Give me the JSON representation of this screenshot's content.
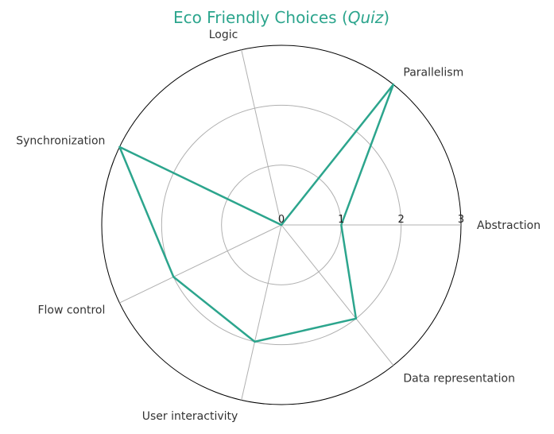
{
  "chart_data": {
    "type": "radar",
    "title": "Eco Friendly Choices (",
    "title_emphasis": "Quiz",
    "title_suffix": ")",
    "categories": [
      "Abstraction",
      "Parallelism",
      "Logic",
      "Synchronization",
      "Flow control",
      "User interactivity",
      "Data representation"
    ],
    "series": [
      {
        "name": "Quiz",
        "values": [
          1,
          3,
          0,
          3,
          2,
          2,
          2
        ]
      }
    ],
    "rmax": 3,
    "ticks": [
      "0",
      "1",
      "2",
      "3"
    ],
    "grid": true
  },
  "colors": {
    "accent": "#2ca58d",
    "title": "#2ca58d"
  }
}
